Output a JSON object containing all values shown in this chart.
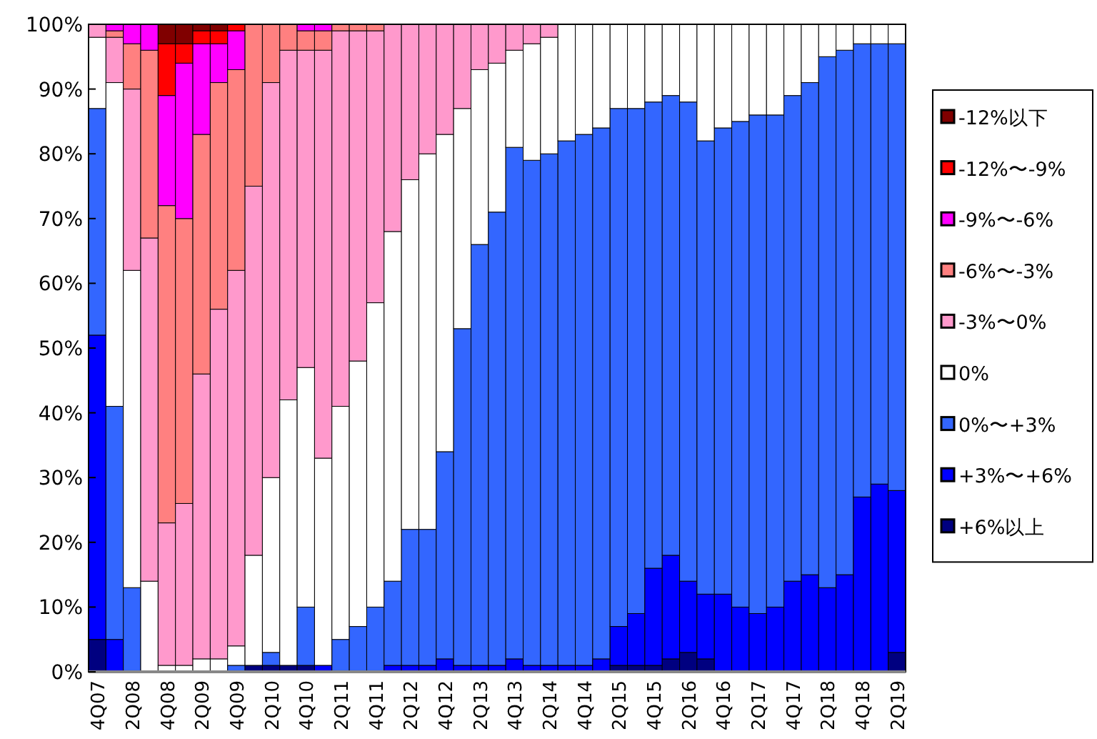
{
  "chart_data": {
    "type": "bar",
    "stacked": true,
    "legend": "right",
    "ylim": [
      0,
      100
    ],
    "yticks": [
      {
        "value": 0,
        "label": "0%"
      },
      {
        "value": 10,
        "label": "10%"
      },
      {
        "value": 20,
        "label": "20%"
      },
      {
        "value": 30,
        "label": "30%"
      },
      {
        "value": 40,
        "label": "40%"
      },
      {
        "value": 50,
        "label": "50%"
      },
      {
        "value": 60,
        "label": "60%"
      },
      {
        "value": 70,
        "label": "70%"
      },
      {
        "value": 80,
        "label": "80%"
      },
      {
        "value": 90,
        "label": "90%"
      },
      {
        "value": 100,
        "label": "100%"
      }
    ],
    "categories": [
      "4Q07",
      null,
      "2Q08",
      null,
      "4Q08",
      null,
      "2Q09",
      null,
      "4Q09",
      null,
      "2Q10",
      null,
      "4Q10",
      null,
      "2Q11",
      null,
      "4Q11",
      null,
      "2Q12",
      null,
      "4Q12",
      null,
      "2Q13",
      null,
      "4Q13",
      null,
      "2Q14",
      null,
      "4Q14",
      null,
      "2Q15",
      null,
      "4Q15",
      null,
      "2Q16",
      null,
      "4Q16",
      null,
      "2Q17",
      null,
      "4Q17",
      null,
      "2Q18",
      null,
      "4Q18",
      null,
      "2Q19"
    ],
    "series": [
      {
        "name": "+6%以上",
        "color": "#000080",
        "values": [
          5,
          0,
          0,
          0,
          0,
          0,
          0,
          0,
          0,
          1,
          1,
          1,
          1,
          0,
          0,
          0,
          0,
          0,
          0,
          0,
          0,
          0,
          0,
          0,
          0,
          0,
          0,
          0,
          0,
          0,
          1,
          1,
          1,
          2,
          3,
          2,
          0,
          0,
          0,
          0,
          0,
          0,
          0,
          0,
          0,
          0,
          3
        ]
      },
      {
        "name": "+3%〜+6%",
        "color": "#0000ff",
        "values": [
          47,
          5,
          0,
          0,
          0,
          0,
          0,
          0,
          0,
          0,
          0,
          0,
          0,
          1,
          0,
          0,
          0,
          1,
          1,
          1,
          2,
          1,
          1,
          1,
          2,
          1,
          1,
          1,
          1,
          2,
          6,
          8,
          15,
          16,
          11,
          10,
          12,
          10,
          9,
          10,
          14,
          15,
          13,
          15,
          27,
          29,
          25
        ]
      },
      {
        "name": "0%〜+3%",
        "color": "#3366ff",
        "values": [
          35,
          36,
          13,
          0,
          0,
          0,
          0,
          0,
          1,
          0,
          2,
          0,
          9,
          0,
          5,
          7,
          10,
          13,
          21,
          21,
          32,
          52,
          65,
          70,
          79,
          78,
          79,
          81,
          82,
          82,
          80,
          78,
          72,
          71,
          74,
          70,
          72,
          75,
          77,
          76,
          75,
          76,
          82,
          81,
          70,
          68,
          69
        ]
      },
      {
        "name": "0%",
        "color": "#ffffff",
        "values": [
          11,
          50,
          49,
          14,
          1,
          1,
          2,
          2,
          3,
          17,
          27,
          41,
          37,
          32,
          36,
          41,
          47,
          54,
          54,
          58,
          49,
          34,
          27,
          23,
          15,
          18,
          18,
          18,
          17,
          16,
          13,
          13,
          12,
          11,
          12,
          18,
          16,
          15,
          14,
          14,
          11,
          9,
          5,
          4,
          3,
          3,
          3
        ]
      },
      {
        "name": "-3%〜0%",
        "color": "#ff99cc",
        "values": [
          2,
          7,
          28,
          53,
          22,
          25,
          44,
          54,
          58,
          57,
          61,
          54,
          49,
          63,
          58,
          51,
          42,
          32,
          24,
          20,
          17,
          13,
          7,
          6,
          4,
          3,
          2,
          0,
          0,
          0,
          0,
          0,
          0,
          0,
          0,
          0,
          0,
          0,
          0,
          0,
          0,
          0,
          0,
          0,
          0,
          0,
          0
        ]
      },
      {
        "name": "-6%〜-3%",
        "color": "#ff8080",
        "values": [
          0,
          1,
          7,
          29,
          49,
          44,
          37,
          35,
          31,
          25,
          9,
          4,
          3,
          3,
          1,
          1,
          1,
          0,
          0,
          0,
          0,
          0,
          0,
          0,
          0,
          0,
          0,
          0,
          0,
          0,
          0,
          0,
          0,
          0,
          0,
          0,
          0,
          0,
          0,
          0,
          0,
          0,
          0,
          0,
          0,
          0,
          0
        ]
      },
      {
        "name": "-9%〜-6%",
        "color": "#ff00ff",
        "values": [
          0,
          1,
          3,
          4,
          17,
          24,
          14,
          6,
          6,
          0,
          0,
          0,
          1,
          1,
          0,
          0,
          0,
          0,
          0,
          0,
          0,
          0,
          0,
          0,
          0,
          0,
          0,
          0,
          0,
          0,
          0,
          0,
          0,
          0,
          0,
          0,
          0,
          0,
          0,
          0,
          0,
          0,
          0,
          0,
          0,
          0,
          0
        ]
      },
      {
        "name": "-12%〜-9%",
        "color": "#ff0000",
        "values": [
          0,
          0,
          0,
          0,
          8,
          3,
          2,
          2,
          1,
          0,
          0,
          0,
          0,
          0,
          0,
          0,
          0,
          0,
          0,
          0,
          0,
          0,
          0,
          0,
          0,
          0,
          0,
          0,
          0,
          0,
          0,
          0,
          0,
          0,
          0,
          0,
          0,
          0,
          0,
          0,
          0,
          0,
          0,
          0,
          0,
          0,
          0
        ]
      },
      {
        "name": "-12%以下",
        "color": "#800000",
        "values": [
          0,
          0,
          0,
          0,
          3,
          3,
          1,
          1,
          0,
          0,
          0,
          0,
          0,
          0,
          0,
          0,
          0,
          0,
          0,
          0,
          0,
          0,
          0,
          0,
          0,
          0,
          0,
          0,
          0,
          0,
          0,
          0,
          0,
          0,
          0,
          0,
          0,
          0,
          0,
          0,
          0,
          0,
          0,
          0,
          0,
          0,
          0
        ]
      }
    ]
  }
}
